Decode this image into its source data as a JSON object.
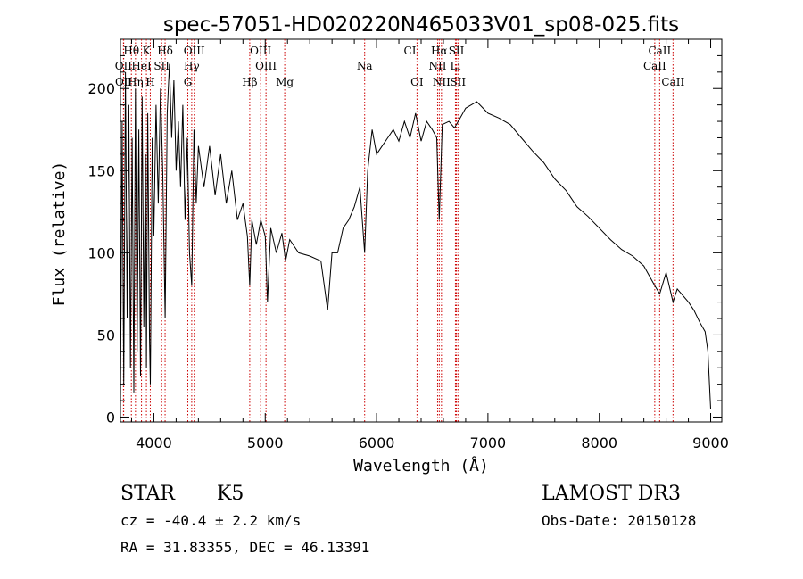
{
  "header": {
    "title": "spec-57051-HD020220N465033V01_sp08-025.fits"
  },
  "footer": {
    "object_class": "STAR",
    "subclass": "K5",
    "redshift": "cz = -40.4 ± 2.2 km/s",
    "coords": "RA =  31.83355, DEC =  46.13391",
    "survey": "LAMOST DR3",
    "obs_date": "Obs-Date: 20150128"
  },
  "chart_data": {
    "type": "line",
    "title": "spec-57051-HD020220N465033V01_sp08-025.fits",
    "xlabel": "Wavelength (Å)",
    "ylabel": "Flux (relative)",
    "xlim": [
      3700,
      9100
    ],
    "ylim": [
      -3,
      230
    ],
    "x_ticks": [
      4000,
      5000,
      6000,
      7000,
      8000,
      9000
    ],
    "y_ticks": [
      0,
      50,
      100,
      150,
      200
    ],
    "grid": false,
    "line_color": "#000000",
    "marker_color": "#cc0000",
    "series": [
      {
        "points": [
          [
            3700,
            5
          ],
          [
            3715,
            180
          ],
          [
            3730,
            20
          ],
          [
            3745,
            210
          ],
          [
            3760,
            60
          ],
          [
            3775,
            190
          ],
          [
            3790,
            30
          ],
          [
            3805,
            170
          ],
          [
            3820,
            15
          ],
          [
            3835,
            200
          ],
          [
            3850,
            40
          ],
          [
            3865,
            175
          ],
          [
            3880,
            25
          ],
          [
            3895,
            195
          ],
          [
            3910,
            55
          ],
          [
            3925,
            160
          ],
          [
            3933,
            30
          ],
          [
            3945,
            185
          ],
          [
            3960,
            50
          ],
          [
            3968,
            20
          ],
          [
            3985,
            170
          ],
          [
            4000,
            110
          ],
          [
            4020,
            190
          ],
          [
            4040,
            130
          ],
          [
            4060,
            200
          ],
          [
            4080,
            150
          ],
          [
            4101,
            60
          ],
          [
            4120,
            185
          ],
          [
            4140,
            215
          ],
          [
            4160,
            170
          ],
          [
            4180,
            205
          ],
          [
            4200,
            150
          ],
          [
            4220,
            180
          ],
          [
            4240,
            140
          ],
          [
            4260,
            190
          ],
          [
            4280,
            120
          ],
          [
            4300,
            170
          ],
          [
            4320,
            100
          ],
          [
            4340,
            80
          ],
          [
            4360,
            175
          ],
          [
            4380,
            130
          ],
          [
            4400,
            165
          ],
          [
            4450,
            140
          ],
          [
            4500,
            165
          ],
          [
            4550,
            135
          ],
          [
            4600,
            160
          ],
          [
            4650,
            130
          ],
          [
            4700,
            150
          ],
          [
            4750,
            120
          ],
          [
            4800,
            130
          ],
          [
            4840,
            110
          ],
          [
            4861,
            80
          ],
          [
            4880,
            120
          ],
          [
            4920,
            105
          ],
          [
            4960,
            120
          ],
          [
            5000,
            110
          ],
          [
            5020,
            70
          ],
          [
            5050,
            115
          ],
          [
            5100,
            100
          ],
          [
            5150,
            112
          ],
          [
            5183,
            95
          ],
          [
            5220,
            108
          ],
          [
            5300,
            100
          ],
          [
            5400,
            98
          ],
          [
            5500,
            95
          ],
          [
            5560,
            65
          ],
          [
            5600,
            100
          ],
          [
            5650,
            100
          ],
          [
            5700,
            115
          ],
          [
            5750,
            120
          ],
          [
            5800,
            128
          ],
          [
            5850,
            140
          ],
          [
            5893,
            100
          ],
          [
            5920,
            150
          ],
          [
            5960,
            175
          ],
          [
            6000,
            160
          ],
          [
            6050,
            165
          ],
          [
            6100,
            170
          ],
          [
            6150,
            175
          ],
          [
            6200,
            168
          ],
          [
            6250,
            180
          ],
          [
            6300,
            170
          ],
          [
            6350,
            185
          ],
          [
            6400,
            168
          ],
          [
            6450,
            180
          ],
          [
            6500,
            175
          ],
          [
            6540,
            170
          ],
          [
            6563,
            120
          ],
          [
            6590,
            178
          ],
          [
            6650,
            180
          ],
          [
            6700,
            176
          ],
          [
            6750,
            182
          ],
          [
            6800,
            188
          ],
          [
            6900,
            192
          ],
          [
            7000,
            185
          ],
          [
            7100,
            182
          ],
          [
            7200,
            178
          ],
          [
            7300,
            170
          ],
          [
            7400,
            162
          ],
          [
            7500,
            155
          ],
          [
            7600,
            145
          ],
          [
            7700,
            138
          ],
          [
            7800,
            128
          ],
          [
            7900,
            122
          ],
          [
            8000,
            115
          ],
          [
            8100,
            108
          ],
          [
            8200,
            102
          ],
          [
            8300,
            98
          ],
          [
            8400,
            92
          ],
          [
            8498,
            80
          ],
          [
            8542,
            75
          ],
          [
            8600,
            88
          ],
          [
            8662,
            70
          ],
          [
            8700,
            78
          ],
          [
            8800,
            70
          ],
          [
            8850,
            65
          ],
          [
            8900,
            58
          ],
          [
            8950,
            52
          ],
          [
            8975,
            40
          ],
          [
            9000,
            5
          ]
        ]
      }
    ],
    "line_markers": [
      {
        "label": "Hθ",
        "wl": 3798,
        "row": 0
      },
      {
        "label": "K",
        "wl": 3933,
        "row": 0
      },
      {
        "label": "Hδ",
        "wl": 4101,
        "row": 0
      },
      {
        "label": "OIII",
        "wl": 4363,
        "row": 0
      },
      {
        "label": "OIII",
        "wl": 4959,
        "row": 0
      },
      {
        "label": "CI",
        "wl": 6300,
        "row": 0
      },
      {
        "label": "Hα",
        "wl": 6563,
        "row": 0
      },
      {
        "label": "SII",
        "wl": 6717,
        "row": 0
      },
      {
        "label": "CaII",
        "wl": 8542,
        "row": 0
      },
      {
        "label": "OII",
        "wl": 3727,
        "row": 1
      },
      {
        "label": "HeI",
        "wl": 3889,
        "row": 1
      },
      {
        "label": "SII",
        "wl": 4070,
        "row": 1
      },
      {
        "label": "Hγ",
        "wl": 4340,
        "row": 1
      },
      {
        "label": "OIII",
        "wl": 5007,
        "row": 1
      },
      {
        "label": "Na",
        "wl": 5893,
        "row": 1
      },
      {
        "label": "NII",
        "wl": 6548,
        "row": 1
      },
      {
        "label": "Li",
        "wl": 6708,
        "row": 1
      },
      {
        "label": "CaII",
        "wl": 8498,
        "row": 1
      },
      {
        "label": "OII",
        "wl": 3729,
        "row": 2
      },
      {
        "label": "Hη",
        "wl": 3835,
        "row": 2
      },
      {
        "label": "H",
        "wl": 3968,
        "row": 2
      },
      {
        "label": "G",
        "wl": 4305,
        "row": 2
      },
      {
        "label": "Hβ",
        "wl": 4861,
        "row": 2
      },
      {
        "label": "Mg",
        "wl": 5175,
        "row": 2
      },
      {
        "label": "OI",
        "wl": 6363,
        "row": 2
      },
      {
        "label": "NII",
        "wl": 6583,
        "row": 2
      },
      {
        "label": "SII",
        "wl": 6731,
        "row": 2
      },
      {
        "label": "CaII",
        "wl": 8662,
        "row": 2
      }
    ]
  }
}
